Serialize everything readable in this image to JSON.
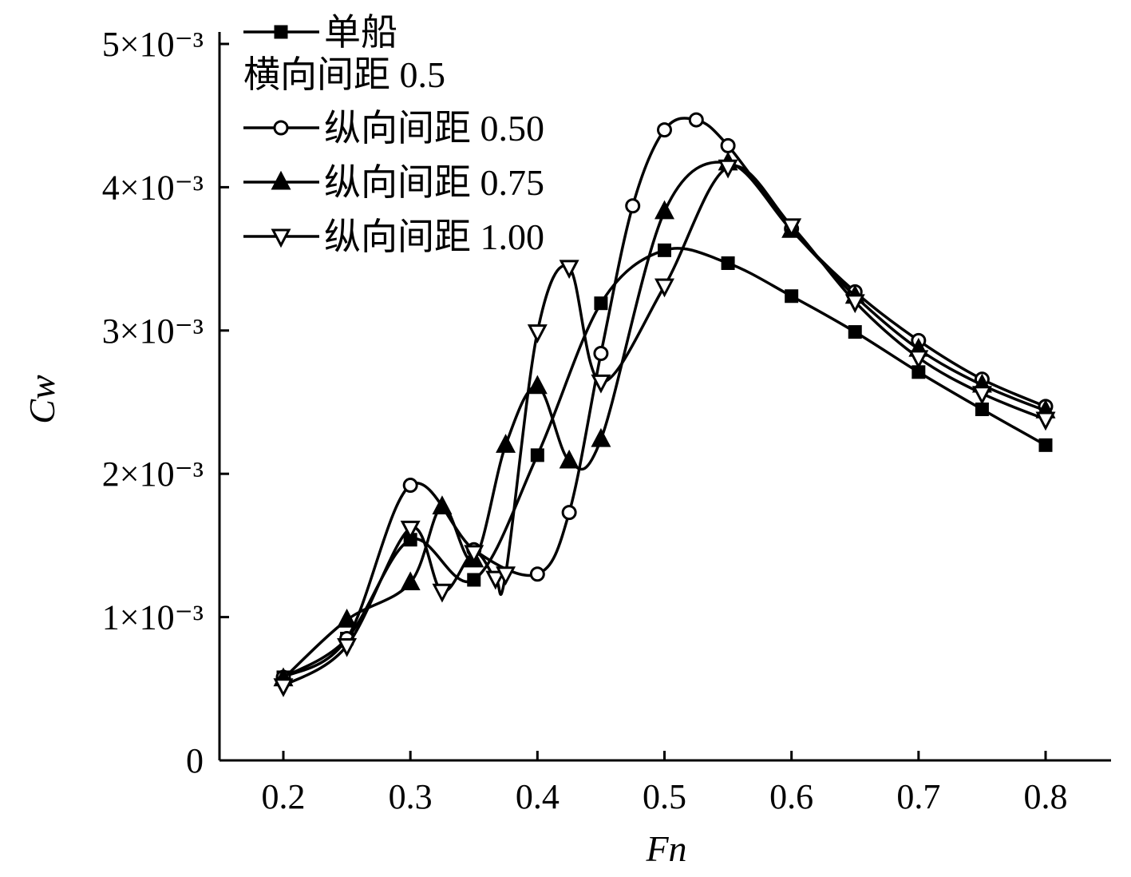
{
  "chart_data": {
    "type": "line",
    "xlabel": "Fn",
    "ylabel": "Cw",
    "xlim": [
      0.15,
      0.85
    ],
    "ylim": [
      0,
      0.005
    ],
    "x_ticks": [
      "0.2",
      "0.3",
      "0.4",
      "0.5",
      "0.6",
      "0.7",
      "0.8"
    ],
    "x_tick_values": [
      0.2,
      0.3,
      0.4,
      0.5,
      0.6,
      0.7,
      0.8
    ],
    "y_ticks": [
      "0",
      "1×10⁻³",
      "2×10⁻³",
      "3×10⁻³",
      "4×10⁻³",
      "5×10⁻³"
    ],
    "y_tick_values": [
      0,
      0.001,
      0.002,
      0.003,
      0.004,
      0.005
    ],
    "grid": false,
    "legend_placement": "top-left",
    "legend_header": "横向间距 0.5",
    "line_color": "#000000",
    "series": [
      {
        "name": "单船",
        "marker": "filled-square",
        "x": [
          0.2,
          0.25,
          0.3,
          0.35,
          0.4,
          0.45,
          0.5,
          0.55,
          0.6,
          0.65,
          0.7,
          0.75,
          0.8
        ],
        "y": [
          0.00058,
          0.00085,
          0.00154,
          0.00126,
          0.00213,
          0.00319,
          0.00356,
          0.00347,
          0.00324,
          0.00299,
          0.00271,
          0.00245,
          0.0022
        ]
      },
      {
        "name": "纵向间距 0.50",
        "marker": "open-circle",
        "x": [
          0.2,
          0.25,
          0.3,
          0.35,
          0.4,
          0.425,
          0.45,
          0.475,
          0.5,
          0.525,
          0.55,
          0.6,
          0.65,
          0.7,
          0.75,
          0.8
        ],
        "y": [
          0.00058,
          0.00085,
          0.00192,
          0.00147,
          0.0013,
          0.00173,
          0.00284,
          0.00387,
          0.0044,
          0.00447,
          0.00429,
          0.00371,
          0.00327,
          0.00293,
          0.00266,
          0.00247
        ]
      },
      {
        "name": "纵向间距 0.75",
        "marker": "filled-triangle-up",
        "x": [
          0.2,
          0.25,
          0.3,
          0.325,
          0.35,
          0.375,
          0.4,
          0.425,
          0.45,
          0.5,
          0.55,
          0.6,
          0.65,
          0.7,
          0.75,
          0.8
        ],
        "y": [
          0.00057,
          0.00098,
          0.00124,
          0.00177,
          0.0014,
          0.0022,
          0.00261,
          0.00209,
          0.00224,
          0.00383,
          0.00417,
          0.0037,
          0.00324,
          0.00287,
          0.00262,
          0.00244
        ]
      },
      {
        "name": "纵向间距 1.00",
        "marker": "open-triangle-down",
        "x": [
          0.2,
          0.25,
          0.3,
          0.325,
          0.35,
          0.367,
          0.375,
          0.4,
          0.425,
          0.45,
          0.5,
          0.55,
          0.6,
          0.65,
          0.7,
          0.75,
          0.8
        ],
        "y": [
          0.00052,
          0.0008,
          0.00162,
          0.00118,
          0.00145,
          0.00127,
          0.0013,
          0.00299,
          0.00344,
          0.00264,
          0.00331,
          0.00414,
          0.00373,
          0.0032,
          0.00281,
          0.00256,
          0.00238
        ]
      }
    ]
  }
}
